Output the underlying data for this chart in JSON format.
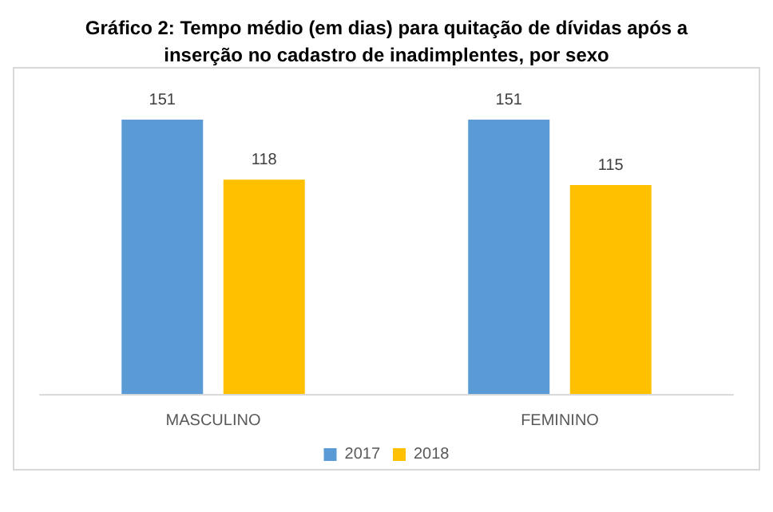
{
  "chart_data": {
    "type": "bar",
    "title": "Gráfico 2: Tempo médio (em dias) para quitação de dívidas após a\ninserção no cadastro de inadimplentes, por sexo",
    "categories": [
      "MASCULINO",
      "FEMININO"
    ],
    "series": [
      {
        "name": "2017",
        "color": "#5b9bd5",
        "values": [
          151,
          151
        ]
      },
      {
        "name": "2018",
        "color": "#ffc000",
        "values": [
          118,
          115
        ]
      }
    ],
    "ylim": [
      0,
      180
    ],
    "data_labels": true,
    "grid": false,
    "legend": "bottom",
    "tick_labels": "x"
  }
}
